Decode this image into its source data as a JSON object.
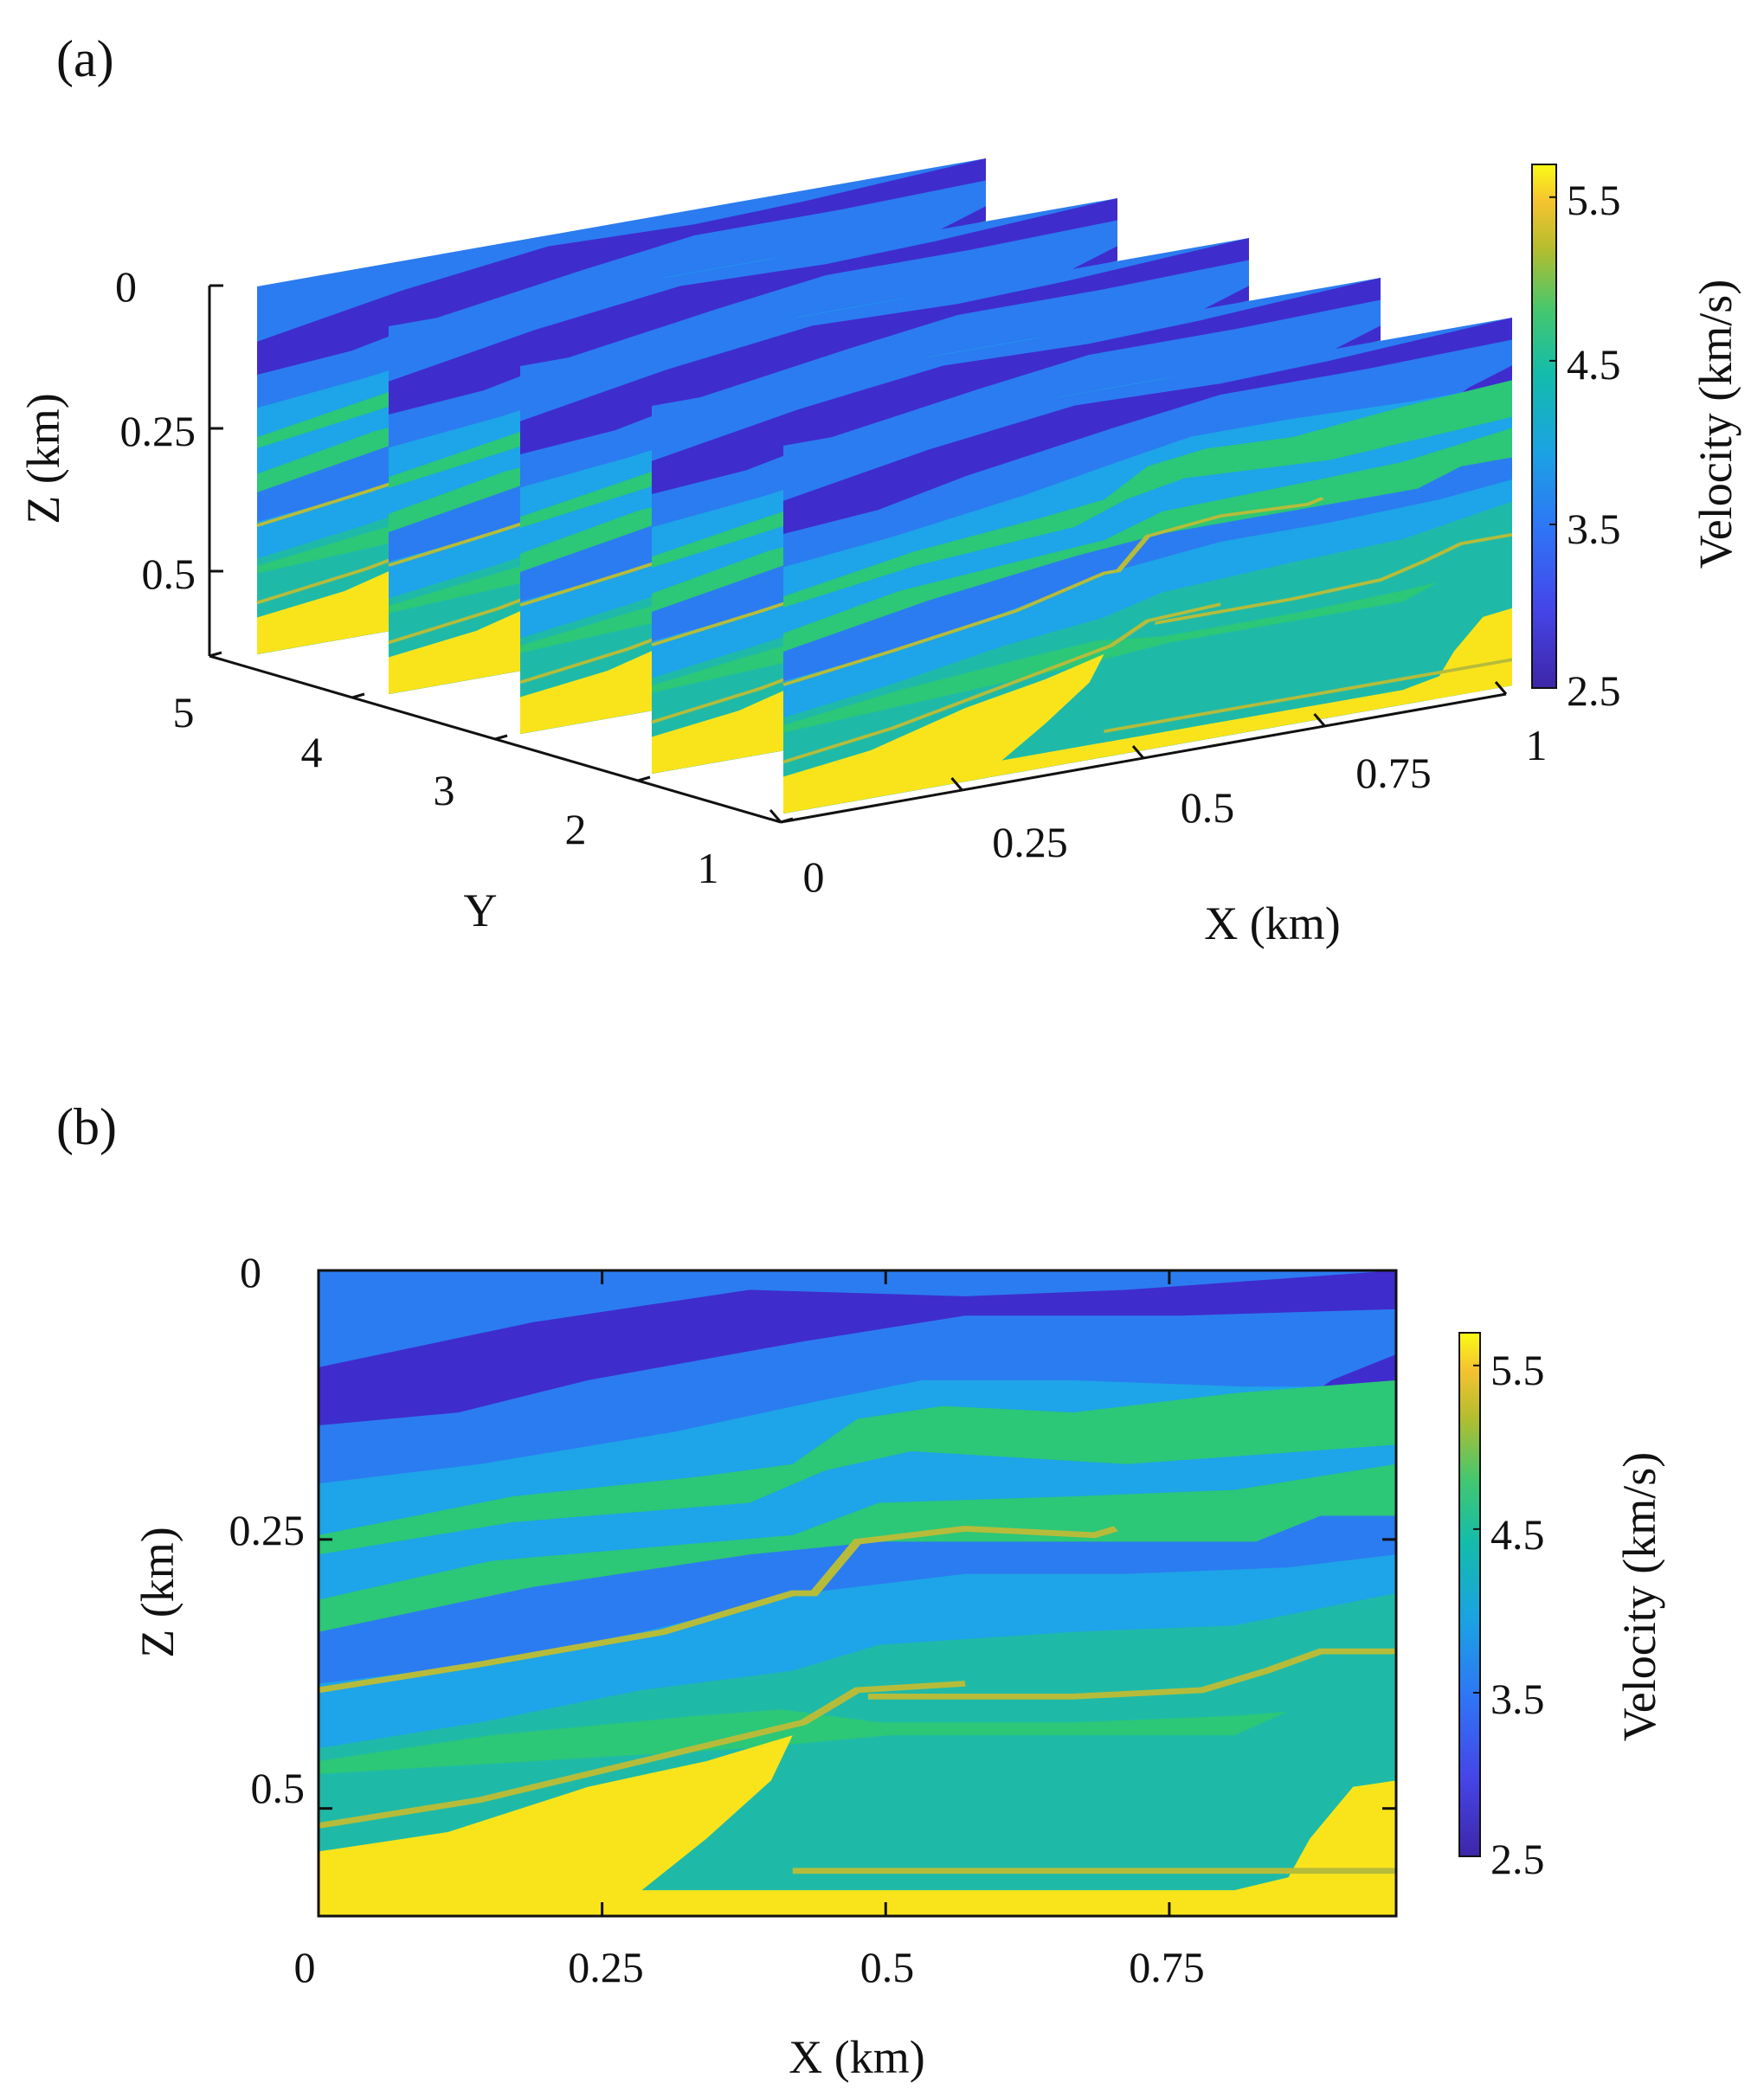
{
  "figure": {
    "panels": [
      "(a)",
      "(b)"
    ]
  },
  "chart_data": [
    {
      "type": "heatmap",
      "subtype": "3d-slices",
      "panel": "(a)",
      "title": "",
      "xlabel": "X (km)",
      "ylabel": "Y",
      "zlabel": "Z (km)",
      "xlim": [
        0,
        1
      ],
      "ylim": [
        1,
        5
      ],
      "zlim": [
        0,
        0.6
      ],
      "xticks": [
        "0",
        "0.25",
        "0.5",
        "0.75",
        "1"
      ],
      "yticks": [
        "1",
        "2",
        "3",
        "4",
        "5"
      ],
      "zticks": [
        "0",
        "0.25",
        "0.5"
      ],
      "slices_at_y": [
        1,
        2,
        3,
        4,
        5
      ],
      "colorbar": {
        "label": "Velocity (km/s)",
        "range": [
          2.5,
          5.7
        ],
        "ticks": [
          "2.5",
          "3.5",
          "4.5",
          "5.5"
        ],
        "colormap": "parula"
      }
    },
    {
      "type": "heatmap",
      "panel": "(b)",
      "title": "",
      "xlabel": "X (km)",
      "ylabel": "Z (km)",
      "xlim": [
        0,
        0.95
      ],
      "ylim": [
        0,
        0.6
      ],
      "xticks": [
        "0",
        "0.25",
        "0.5",
        "0.75"
      ],
      "yticks": [
        "0",
        "0.25",
        "0.5"
      ],
      "layers_velocity_kms": [
        2.6,
        3.3,
        3.6,
        4.2,
        5.6
      ],
      "colorbar": {
        "label": "Velocity (km/s)",
        "range": [
          2.5,
          5.7
        ],
        "ticks": [
          "2.5",
          "3.5",
          "4.5",
          "5.5"
        ],
        "colormap": "parula"
      }
    }
  ],
  "colors": {
    "deep_blue": "#3f2ccd",
    "blue": "#2b7cf0",
    "light_blue": "#1ea4e8",
    "teal": "#1fbaa7",
    "green": "#2cc777",
    "yellow": "#f9e41c",
    "olive_line": "#b6bc3a"
  }
}
